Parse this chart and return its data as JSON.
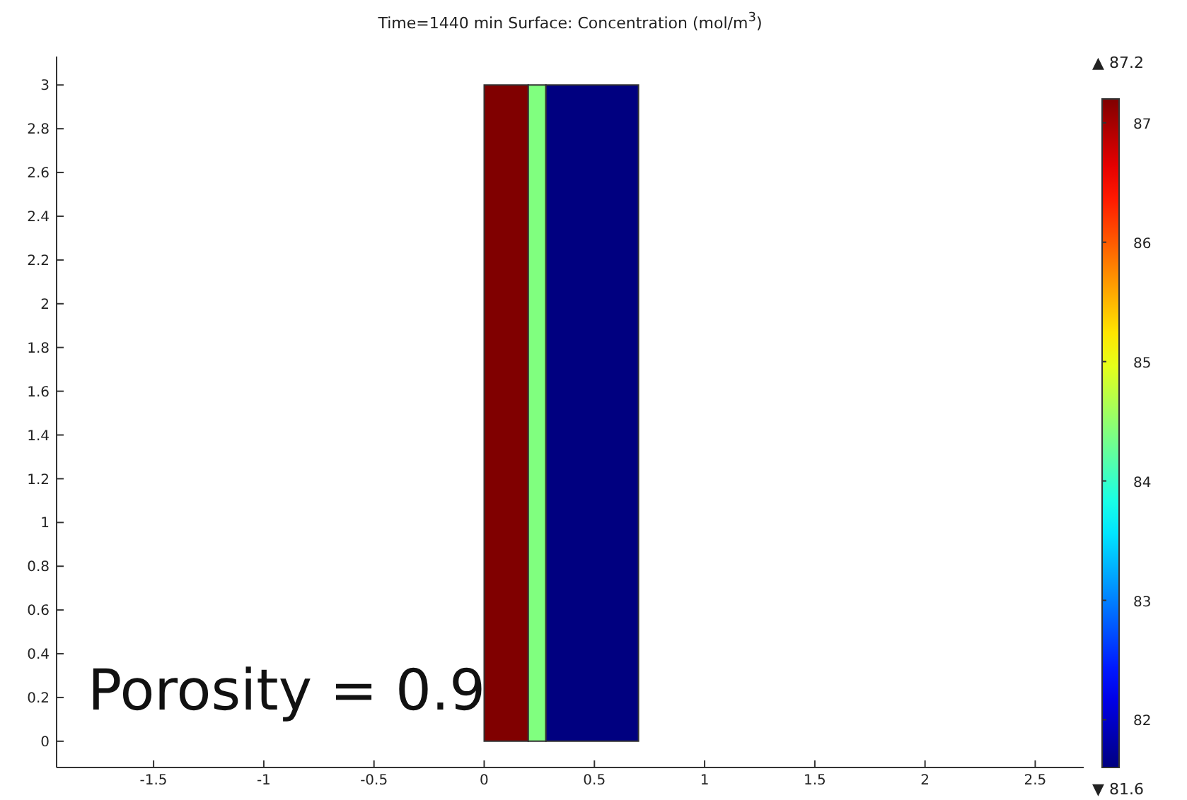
{
  "chart_data": {
    "type": "histogram",
    "title": "Time=1440 min   Surface: Concentration (mol/m$^{3}$)",
    "bins": [
      0,
      0.2,
      0.28,
      0.7
    ],
    "values": [
      3,
      3,
      3
    ],
    "cvalues": [
      87.2,
      84.4,
      81.6
    ],
    "clim": [
      81.6,
      87.2
    ],
    "cticks": [
      82,
      83,
      84,
      85,
      86,
      87
    ],
    "xlim": [
      -1.94,
      2.72
    ],
    "ylim": [
      -0.12,
      3.13
    ],
    "xticks": [
      -1.5,
      -1,
      -0.5,
      0,
      0.5,
      1,
      1.5,
      2,
      2.5
    ],
    "yticks": [
      0,
      0.2,
      0.4,
      0.6,
      0.8,
      1,
      1.2,
      1.4,
      1.6,
      1.8,
      2,
      2.2,
      2.4,
      2.6,
      2.8,
      3
    ],
    "grid": false,
    "annotations": [
      "Porosity = 0.9",
      "▲ 87.2",
      "▼ 81.6"
    ]
  }
}
